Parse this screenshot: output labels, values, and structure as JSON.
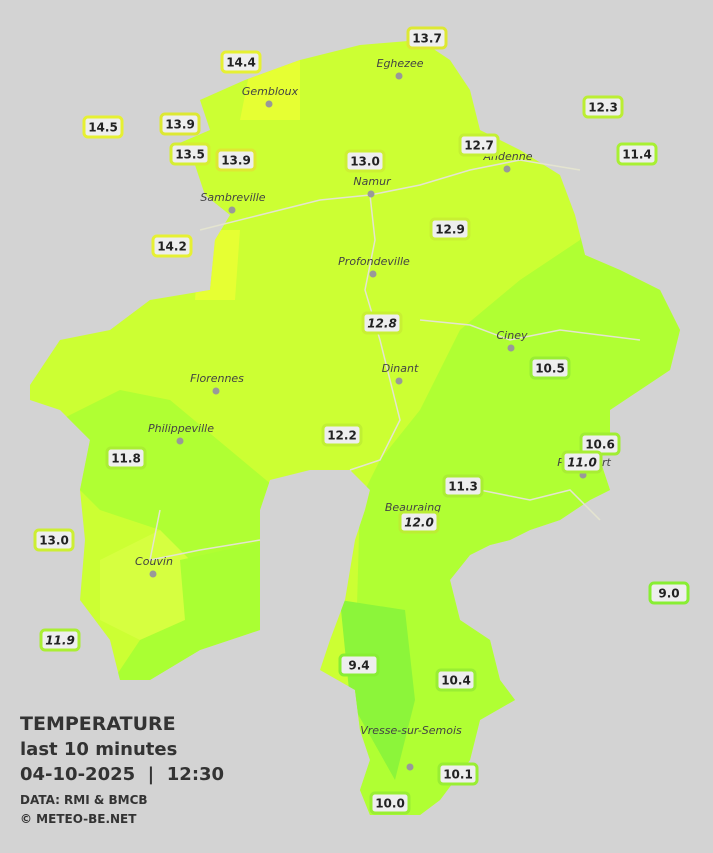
{
  "title": "TEMPERATURE",
  "subtitle": "last 10 minutes",
  "datetime": "04-10-2025  |  12:30",
  "source": "DATA: RMI & BMCB",
  "credit": "© METEO-BE.NET",
  "cities": [
    "Eghezee",
    "Gembloux",
    "Andenne",
    "Namur",
    "Sambreville",
    "Profondeville",
    "Ciney",
    "Dinant",
    "Florennes",
    "Philippeville",
    "Rochefort",
    "Beauraing",
    "Couvin",
    "Vresse-sur-Semois"
  ],
  "stations": [
    "13.7",
    "14.4",
    "14.5",
    "13.9",
    "13.5",
    "13.9",
    "13.0",
    "12.7",
    "12.3",
    "11.4",
    "14.2",
    "12.9",
    "12.8",
    "10.5",
    "12.2",
    "11.8",
    "10.6",
    "11.0",
    "11.3",
    "12.0",
    "13.0",
    "9.0",
    "11.9",
    "9.4",
    "10.4",
    "10.1",
    "10.0"
  ]
}
